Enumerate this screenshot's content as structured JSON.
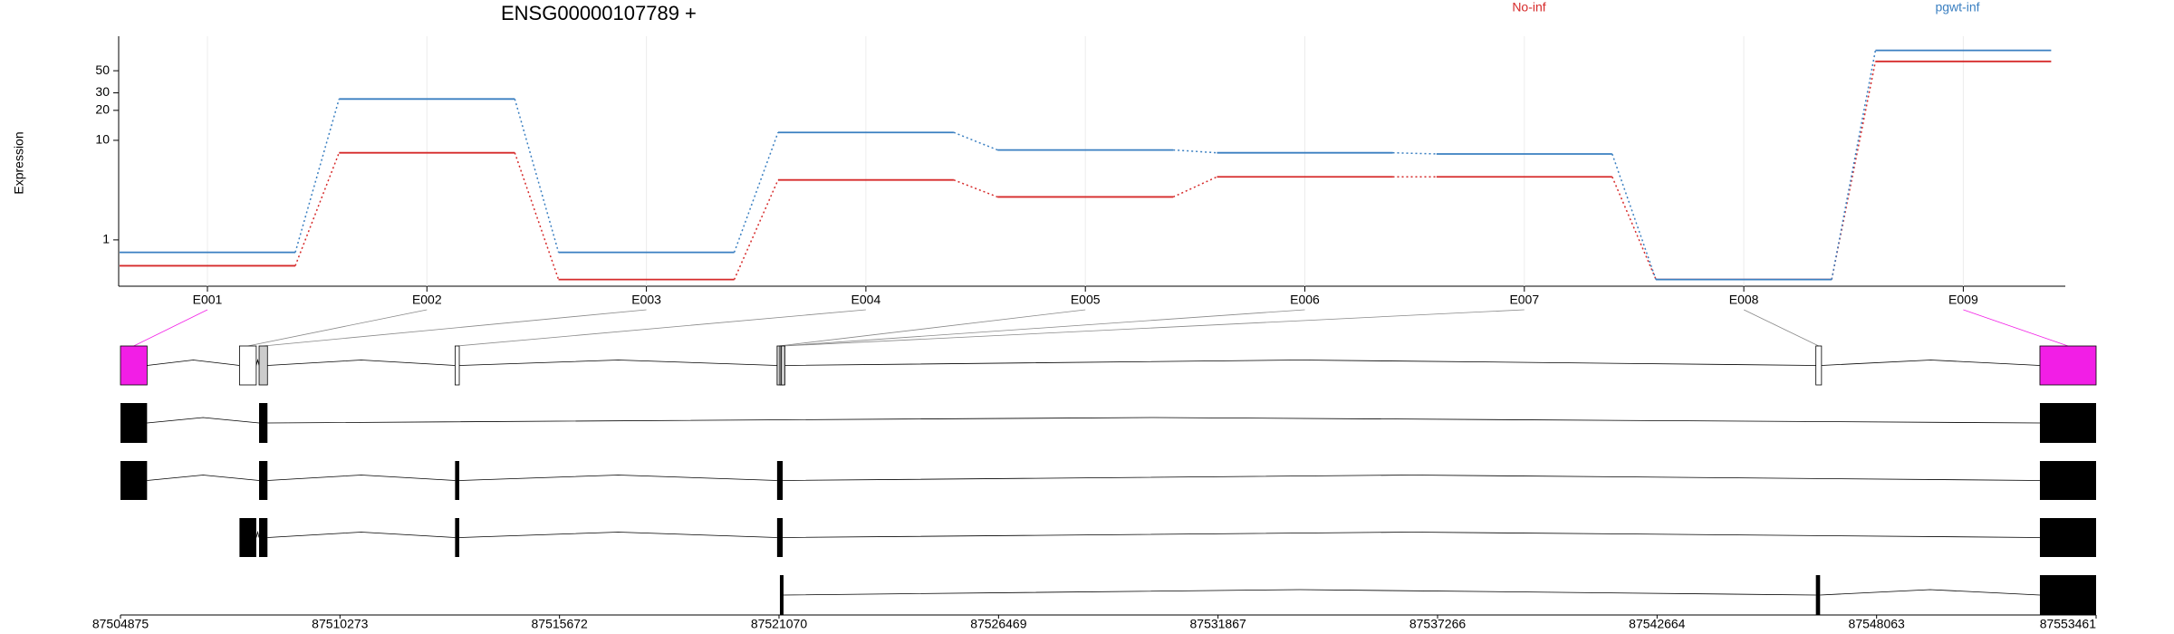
{
  "chart_data": {
    "type": "line",
    "title": "ENSG00000107789 +",
    "ylabel": "Expression",
    "categories": [
      "E001",
      "E002",
      "E003",
      "E004",
      "E005",
      "E006",
      "E007",
      "E008",
      "E009"
    ],
    "series": [
      {
        "name": "No-inf",
        "color": "#d62a2a",
        "values": [
          0.55,
          7.5,
          0.4,
          4,
          2.7,
          4.3,
          4.3,
          0.4,
          62
        ]
      },
      {
        "name": "pgwt-inf",
        "color": "#3a7fc1",
        "values": [
          0.75,
          26,
          0.75,
          12,
          8,
          7.5,
          7.3,
          0.4,
          80
        ]
      }
    ],
    "ylim": [
      0.35,
      100
    ],
    "yticks": [
      1,
      10,
      20,
      30,
      50
    ],
    "log_scale": true,
    "grid": true
  },
  "gene_model": {
    "xlim": [
      87504875,
      87553461
    ],
    "xticks": [
      87504875,
      87510273,
      87515672,
      87521070,
      87526469,
      87531867,
      87537266,
      87542664,
      87548063,
      87553461
    ],
    "exons": [
      {
        "start": 87504875,
        "end": 87505529,
        "color": "#f21ee6"
      },
      {
        "start": 87507802,
        "end": 87508214,
        "color": "#ffffff"
      },
      {
        "start": 87508284,
        "end": 87508490,
        "color": "#cccccc"
      },
      {
        "start": 87513104,
        "end": 87513207,
        "color": "#ffffff"
      },
      {
        "start": 87521023,
        "end": 87521092,
        "color": "#cccccc"
      },
      {
        "start": 87521092,
        "end": 87521127,
        "color": "#cccccc"
      },
      {
        "start": 87521127,
        "end": 87521161,
        "color": "#cccccc"
      },
      {
        "start": 87546570,
        "end": 87546708,
        "color": "#ffffff"
      },
      {
        "start": 87552079,
        "end": 87553461,
        "color": "#f21ee6"
      }
    ],
    "transcripts": [
      [
        [
          87504875,
          87505529
        ],
        [
          87508284,
          87508490
        ],
        [
          87552079,
          87553461
        ]
      ],
      [
        [
          87504875,
          87505529
        ],
        [
          87508284,
          87508490
        ],
        [
          87513104,
          87513207
        ],
        [
          87521023,
          87521161
        ],
        [
          87552079,
          87553461
        ]
      ],
      [
        [
          87507802,
          87508214
        ],
        [
          87508284,
          87508490
        ],
        [
          87513104,
          87513207
        ],
        [
          87521023,
          87521161
        ],
        [
          87552079,
          87553461
        ]
      ],
      [
        [
          87521092,
          87521161
        ],
        [
          87546570,
          87546673
        ],
        [
          87552079,
          87553461
        ]
      ]
    ]
  }
}
